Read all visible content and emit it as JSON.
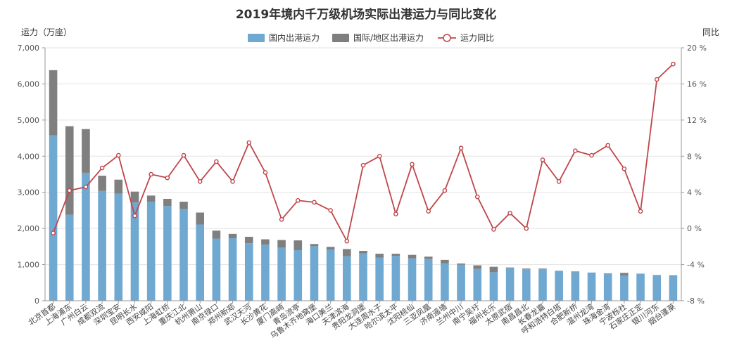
{
  "chart_data": {
    "type": "bar",
    "title": "2019年境内千万级机场实际出港运力与同比变化",
    "ylabel": "运力（万座）",
    "y2label": "同比",
    "ylim": [
      0,
      7000
    ],
    "y2lim": [
      -8,
      20
    ],
    "yticks": [
      "0",
      "1,000",
      "2,000",
      "3,000",
      "4,000",
      "5,000",
      "6,000",
      "7,000"
    ],
    "y2ticks": [
      "-8 %",
      "-4 %",
      "0 %",
      "4 %",
      "8 %",
      "12 %",
      "16 %",
      "20 %"
    ],
    "legend_position": "top-center",
    "grid": true,
    "categories": [
      "北京首都",
      "上海浦东",
      "广州白云",
      "成都双流",
      "深圳宝安",
      "昆明长水",
      "西安咸阳",
      "上海虹桥",
      "重庆江北",
      "杭州萧山",
      "南京禄口",
      "郑州新郑",
      "武汉天河",
      "长沙黄花",
      "厦门高崎",
      "青岛流亭",
      "乌鲁木齐地窝堡",
      "海口美兰",
      "天津滨海",
      "贵阳龙洞堡",
      "大连周水子",
      "哈尔滨太平",
      "沈阳桃仙",
      "三亚凤凰",
      "济南遥墙",
      "兰州中川",
      "南宁吴圩",
      "福州长乐",
      "太原武宿",
      "南昌昌北",
      "长春龙嘉",
      "呼和浩特白塔",
      "合肥新桥",
      "温州龙湾",
      "珠海金湾",
      "宁波栎社",
      "石家庄正定",
      "银川河东",
      "烟台蓬莱"
    ],
    "series": [
      {
        "name": "国内出港运力",
        "type": "bar",
        "color": "#6fa8d0",
        "values": [
          4580,
          2380,
          3540,
          3040,
          2960,
          2720,
          2740,
          2620,
          2540,
          2110,
          1720,
          1730,
          1590,
          1550,
          1470,
          1400,
          1510,
          1420,
          1230,
          1310,
          1190,
          1240,
          1170,
          1160,
          1040,
          1000,
          880,
          790,
          900,
          870,
          870,
          830,
          790,
          780,
          760,
          700,
          750,
          700,
          680
        ]
      },
      {
        "name": "国际/地区出港运力",
        "type": "bar",
        "color": "#7f7f7f",
        "values": [
          1800,
          2450,
          1210,
          420,
          390,
          300,
          170,
          200,
          200,
          330,
          220,
          120,
          180,
          150,
          210,
          270,
          60,
          70,
          200,
          70,
          110,
          60,
          100,
          60,
          90,
          30,
          100,
          150,
          20,
          20,
          20,
          0,
          20,
          0,
          0,
          70,
          0,
          10,
          20
        ]
      },
      {
        "name": "运力同比",
        "type": "line",
        "color": "#c0454a",
        "values": [
          -0.5,
          4.2,
          4.6,
          6.7,
          8.1,
          1.4,
          6.0,
          5.6,
          8.1,
          5.2,
          7.4,
          5.2,
          9.5,
          6.2,
          1.0,
          3.1,
          2.9,
          2.0,
          -1.4,
          7.0,
          8.0,
          1.6,
          7.1,
          1.9,
          4.2,
          8.9,
          3.5,
          -0.1,
          1.7,
          0.0,
          7.6,
          5.2,
          8.6,
          8.1,
          9.2,
          6.6,
          1.9,
          16.5,
          18.2
        ]
      }
    ]
  }
}
